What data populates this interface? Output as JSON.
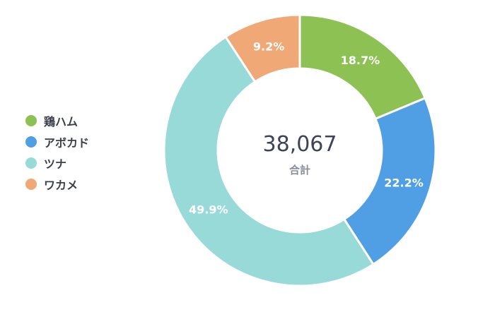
{
  "chart_data": {
    "type": "pie",
    "categories": [
      "鶏ハム",
      "アボカド",
      "ツナ",
      "ワカメ"
    ],
    "values": [
      18.7,
      22.2,
      49.9,
      9.2
    ],
    "value_labels": [
      "18.7%",
      "22.2%",
      "49.9%",
      "9.2%"
    ],
    "colors": [
      "#8dc153",
      "#509fe4",
      "#98dad8",
      "#f0a876"
    ],
    "donut": true,
    "start_angle_deg": 0,
    "direction": "clockwise",
    "legend_placement": "left",
    "center": {
      "total": "38,067",
      "caption": "合計"
    }
  }
}
